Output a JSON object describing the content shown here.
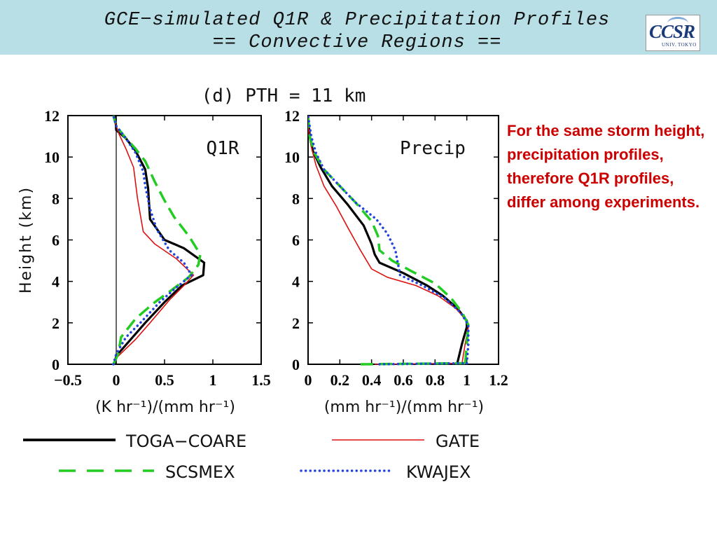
{
  "header": {
    "title_line1": "GCE−simulated Q1R & Precipitation Profiles",
    "title_line2": "== Convective Regions ==",
    "logo_text": "CCSR",
    "logo_subtext": "UNIV. TOKYO",
    "background_color": "#b9dfe6"
  },
  "annotation": "For the same storm height, precipitation profiles, therefore Q1R profiles, differ among experiments.",
  "colors": {
    "TOGA-COARE": "#000000",
    "GATE": "#dd1111",
    "SCSMEX": "#22cc22",
    "KWAJEX": "#2244dd"
  },
  "chart_data": {
    "type": "line",
    "title": "(d) PTH = 11 km",
    "legend_placement": "bottom",
    "legend": [
      {
        "name": "TOGA−COARE",
        "series": "TOGA-COARE",
        "style": "solid-thick"
      },
      {
        "name": "GATE",
        "series": "GATE",
        "style": "solid-thin"
      },
      {
        "name": "SCSMEX",
        "series": "SCSMEX",
        "style": "long-dash"
      },
      {
        "name": "KWAJEX",
        "series": "KWAJEX",
        "style": "dotted"
      }
    ],
    "panels": [
      {
        "label": "Q1R",
        "xlabel": "(K hr⁻¹)/(mm hr⁻¹)",
        "ylabel": "Height (km)",
        "xlim": [
          -0.5,
          1.5
        ],
        "ylim": [
          0,
          12
        ],
        "xticks": [
          "−0.5",
          "0",
          "0.5",
          "1",
          "1.5"
        ],
        "xtick_values": [
          -0.5,
          0,
          0.5,
          1,
          1.5
        ],
        "yticks": [
          "0",
          "2",
          "4",
          "6",
          "8",
          "10",
          "12"
        ],
        "ytick_values": [
          0,
          2,
          4,
          6,
          8,
          10,
          12
        ],
        "zero_line": true,
        "series": [
          {
            "key": "TOGA-COARE",
            "points": [
              [
                -0.02,
                0
              ],
              [
                0.0,
                0.4
              ],
              [
                0.15,
                1.2
              ],
              [
                0.3,
                2
              ],
              [
                0.5,
                3.0
              ],
              [
                0.68,
                3.8
              ],
              [
                0.9,
                4.3
              ],
              [
                0.91,
                4.9
              ],
              [
                0.7,
                5.6
              ],
              [
                0.5,
                6.0
              ],
              [
                0.35,
                7.0
              ],
              [
                0.33,
                8.5
              ],
              [
                0.3,
                9.4
              ],
              [
                0.2,
                10.3
              ],
              [
                0.1,
                10.9
              ],
              [
                0.0,
                11.3
              ],
              [
                -0.01,
                12
              ]
            ]
          },
          {
            "key": "GATE",
            "points": [
              [
                -0.02,
                0
              ],
              [
                0.0,
                0.3
              ],
              [
                0.2,
                1.2
              ],
              [
                0.35,
                2
              ],
              [
                0.55,
                3.1
              ],
              [
                0.7,
                3.8
              ],
              [
                0.8,
                4.3
              ],
              [
                0.62,
                5.1
              ],
              [
                0.4,
                5.8
              ],
              [
                0.28,
                6.4
              ],
              [
                0.22,
                8.0
              ],
              [
                0.18,
                9.5
              ],
              [
                0.1,
                10.4
              ],
              [
                0.03,
                11.1
              ],
              [
                -0.02,
                11.8
              ],
              [
                -0.03,
                12
              ]
            ]
          },
          {
            "key": "SCSMEX",
            "points": [
              [
                -0.03,
                0
              ],
              [
                0.02,
                0.5
              ],
              [
                0.05,
                1.3
              ],
              [
                0.2,
                2.2
              ],
              [
                0.4,
                3.0
              ],
              [
                0.55,
                3.5
              ],
              [
                0.75,
                4.2
              ],
              [
                0.85,
                4.8
              ],
              [
                0.87,
                5.3
              ],
              [
                0.75,
                6.2
              ],
              [
                0.6,
                7.1
              ],
              [
                0.5,
                7.9
              ],
              [
                0.4,
                8.8
              ],
              [
                0.3,
                9.8
              ],
              [
                0.2,
                10.4
              ],
              [
                0.1,
                10.9
              ],
              [
                0.0,
                11.5
              ],
              [
                -0.03,
                12
              ]
            ]
          },
          {
            "key": "KWAJEX",
            "points": [
              [
                -0.03,
                0
              ],
              [
                0.0,
                0.5
              ],
              [
                0.1,
                1.3
              ],
              [
                0.25,
                2
              ],
              [
                0.45,
                3.0
              ],
              [
                0.62,
                3.7
              ],
              [
                0.78,
                4.3
              ],
              [
                0.7,
                4.9
              ],
              [
                0.55,
                5.5
              ],
              [
                0.42,
                6.5
              ],
              [
                0.35,
                7.5
              ],
              [
                0.3,
                8.6
              ],
              [
                0.28,
                9.3
              ],
              [
                0.2,
                10.2
              ],
              [
                0.1,
                10.9
              ],
              [
                0.0,
                11.5
              ],
              [
                -0.03,
                12
              ]
            ]
          }
        ]
      },
      {
        "label": "Precip",
        "xlabel": "(mm hr⁻¹)/(mm hr⁻¹)",
        "ylabel": "",
        "xlim": [
          0,
          1.2
        ],
        "ylim": [
          0,
          12
        ],
        "xticks": [
          "0",
          "0.2",
          "0.4",
          "0.6",
          "0.8",
          "1",
          "1.2"
        ],
        "xtick_values": [
          0,
          0.2,
          0.4,
          0.6,
          0.8,
          1.0,
          1.2
        ],
        "yticks": [
          "0",
          "2",
          "4",
          "6",
          "8",
          "10",
          "12"
        ],
        "ytick_values": [
          0,
          2,
          4,
          6,
          8,
          10,
          12
        ],
        "zero_line": false,
        "series": [
          {
            "key": "TOGA-COARE",
            "points": [
              [
                0.94,
                0.05
              ],
              [
                0.97,
                1.0
              ],
              [
                1.0,
                1.8
              ],
              [
                1.0,
                2.1
              ],
              [
                0.94,
                2.7
              ],
              [
                0.85,
                3.3
              ],
              [
                0.75,
                3.8
              ],
              [
                0.6,
                4.4
              ],
              [
                0.45,
                4.9
              ],
              [
                0.42,
                5.3
              ],
              [
                0.4,
                5.8
              ],
              [
                0.35,
                6.7
              ],
              [
                0.25,
                7.7
              ],
              [
                0.15,
                8.6
              ],
              [
                0.08,
                9.5
              ],
              [
                0.03,
                10.3
              ],
              [
                0.01,
                11
              ],
              [
                0.0,
                12
              ]
            ]
          },
          {
            "key": "GATE",
            "points": [
              [
                0.97,
                0.05
              ],
              [
                0.99,
                1.0
              ],
              [
                1.01,
                1.8
              ],
              [
                1.0,
                2.1
              ],
              [
                0.93,
                2.7
              ],
              [
                0.82,
                3.3
              ],
              [
                0.68,
                3.8
              ],
              [
                0.5,
                4.2
              ],
              [
                0.4,
                4.6
              ],
              [
                0.33,
                5.5
              ],
              [
                0.25,
                6.6
              ],
              [
                0.18,
                7.6
              ],
              [
                0.1,
                8.6
              ],
              [
                0.05,
                9.6
              ],
              [
                0.02,
                10.5
              ],
              [
                0.0,
                11.5
              ],
              [
                0.0,
                12
              ]
            ]
          },
          {
            "key": "SCSMEX",
            "points": [
              [
                0.99,
                0.05
              ],
              [
                1.0,
                1.0
              ],
              [
                1.01,
                1.9
              ],
              [
                0.97,
                2.5
              ],
              [
                0.9,
                3.2
              ],
              [
                0.8,
                3.9
              ],
              [
                0.65,
                4.5
              ],
              [
                0.53,
                5.0
              ],
              [
                0.45,
                5.5
              ],
              [
                0.44,
                6.2
              ],
              [
                0.4,
                6.9
              ],
              [
                0.3,
                7.8
              ],
              [
                0.2,
                8.6
              ],
              [
                0.1,
                9.4
              ],
              [
                0.04,
                10.2
              ],
              [
                0.01,
                11
              ],
              [
                0.0,
                12
              ]
            ]
          },
          {
            "key": "KWAJEX",
            "points": [
              [
                1.0,
                0.05
              ],
              [
                1.01,
                1.0
              ],
              [
                1.01,
                1.9
              ],
              [
                0.96,
                2.5
              ],
              [
                0.86,
                3.2
              ],
              [
                0.72,
                3.8
              ],
              [
                0.58,
                4.3
              ],
              [
                0.55,
                5.5
              ],
              [
                0.5,
                6.3
              ],
              [
                0.43,
                7.0
              ],
              [
                0.3,
                7.8
              ],
              [
                0.2,
                8.6
              ],
              [
                0.1,
                9.4
              ],
              [
                0.05,
                10.2
              ],
              [
                0.02,
                11
              ],
              [
                0.0,
                12
              ]
            ]
          }
        ],
        "surface_lines": [
          {
            "key": "GATE",
            "points": [
              [
                0.42,
                0.0
              ],
              [
                0.97,
                0.05
              ]
            ]
          },
          {
            "key": "SCSMEX",
            "points": [
              [
                0.33,
                0.0
              ],
              [
                0.99,
                0.05
              ]
            ]
          },
          {
            "key": "KWAJEX",
            "points": [
              [
                0.45,
                0.0
              ],
              [
                1.0,
                0.05
              ]
            ]
          }
        ]
      }
    ]
  }
}
